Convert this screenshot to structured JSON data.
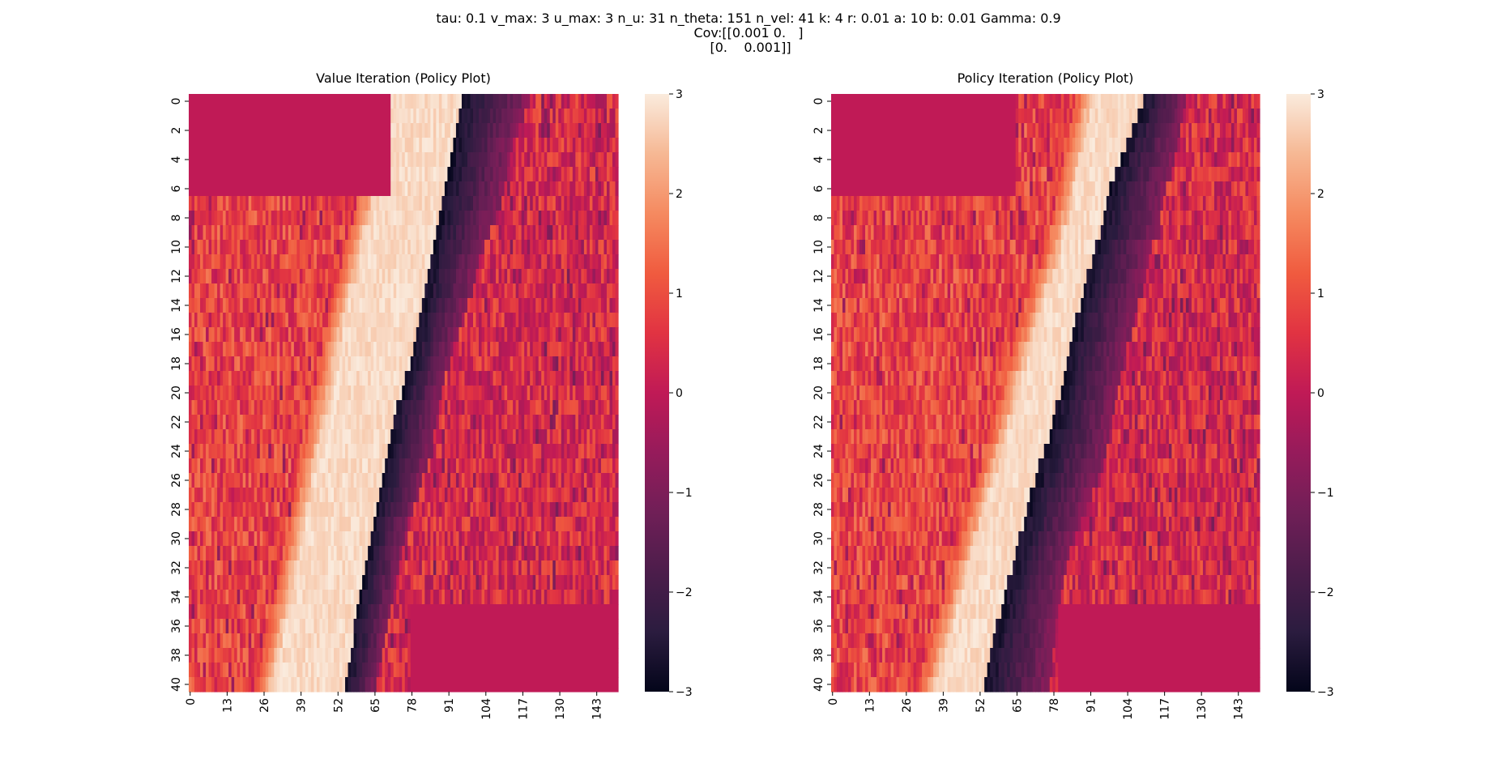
{
  "suptitle": {
    "line1": "tau: 0.1 v_max: 3 u_max: 3 n_u: 31 n_theta: 151 n_vel: 41 k: 4 r: 0.01 a: 10 b: 0.01 Gamma: 0.9",
    "line2": "Cov:[[0.001 0.   ]",
    "line3": " [0.    0.001]]"
  },
  "chart_data": [
    {
      "type": "heatmap",
      "title": "Value Iteration (Policy Plot)",
      "n_rows": 41,
      "n_cols": 151,
      "yticks": [
        "0",
        "2",
        "4",
        "6",
        "8",
        "10",
        "12",
        "14",
        "16",
        "18",
        "20",
        "22",
        "24",
        "26",
        "28",
        "30",
        "32",
        "34",
        "36",
        "38",
        "40"
      ],
      "xticks": [
        "0",
        "13",
        "26",
        "39",
        "52",
        "65",
        "78",
        "91",
        "104",
        "117",
        "130",
        "143"
      ],
      "colorbar": {
        "vmin": -3,
        "vmax": 3,
        "ticks": [
          "3",
          "2",
          "1",
          "0",
          "−1",
          "−2",
          "−3"
        ]
      },
      "bands": {
        "bright_start_col": [
          71,
          71,
          70,
          70,
          68,
          67,
          66,
          65,
          64,
          62,
          61,
          60,
          59,
          57,
          56,
          55,
          54,
          53,
          52,
          51,
          50,
          49,
          48,
          47,
          46,
          45,
          44,
          43,
          42,
          41,
          40,
          39,
          38,
          37,
          36,
          35,
          34,
          33,
          32,
          31,
          30
        ],
        "dark_start_col": [
          96,
          95,
          94,
          93,
          92,
          91,
          90,
          89,
          88,
          87,
          86,
          85,
          84,
          83,
          82,
          81,
          80,
          79,
          78,
          76,
          75,
          73,
          72,
          71,
          70,
          69,
          68,
          67,
          66,
          65,
          64,
          63,
          62,
          61,
          60,
          59,
          58,
          58,
          57,
          56,
          55
        ],
        "dark_end_col": [
          120,
          118,
          116,
          114,
          113,
          112,
          111,
          110,
          108,
          106,
          104,
          102,
          101,
          100,
          98,
          96,
          95,
          93,
          92,
          90,
          89,
          88,
          87,
          86,
          85,
          84,
          82,
          81,
          79,
          77,
          76,
          75,
          74,
          73,
          72,
          71,
          70,
          69,
          68,
          67,
          66
        ]
      },
      "saturated_regions": [
        {
          "rows": [
            0,
            6
          ],
          "cols": [
            0,
            70
          ],
          "value": 0
        },
        {
          "rows": [
            35,
            40
          ],
          "cols": [
            78,
            150
          ],
          "value": 0
        }
      ]
    },
    {
      "type": "heatmap",
      "title": "Policy Iteration (Policy Plot)",
      "n_rows": 41,
      "n_cols": 151,
      "yticks": [
        "0",
        "2",
        "4",
        "6",
        "8",
        "10",
        "12",
        "14",
        "16",
        "18",
        "20",
        "22",
        "24",
        "26",
        "28",
        "30",
        "32",
        "34",
        "36",
        "38",
        "40"
      ],
      "xticks": [
        "0",
        "13",
        "26",
        "39",
        "52",
        "65",
        "78",
        "91",
        "104",
        "117",
        "130",
        "143"
      ],
      "colorbar": {
        "vmin": -3,
        "vmax": 3,
        "ticks": [
          "3",
          "2",
          "1",
          "0",
          "−1",
          "−2",
          "−3"
        ]
      },
      "bands": {
        "bright_start_col": [
          92,
          91,
          90,
          89,
          88,
          87,
          86,
          85,
          84,
          82,
          81,
          80,
          78,
          76,
          75,
          73,
          72,
          70,
          69,
          67,
          66,
          65,
          63,
          62,
          60,
          59,
          57,
          56,
          54,
          53,
          51,
          50,
          48,
          47,
          46,
          44,
          43,
          41,
          40,
          39,
          37
        ],
        "dark_start_col": [
          110,
          108,
          106,
          104,
          102,
          100,
          98,
          97,
          96,
          95,
          93,
          92,
          90,
          89,
          88,
          86,
          85,
          84,
          83,
          82,
          81,
          79,
          78,
          77,
          75,
          73,
          72,
          70,
          69,
          68,
          66,
          65,
          64,
          62,
          61,
          60,
          58,
          57,
          56,
          55,
          54
        ],
        "dark_end_col": [
          125,
          124,
          123,
          122,
          121,
          120,
          118,
          117,
          116,
          115,
          113,
          112,
          111,
          110,
          108,
          107,
          106,
          104,
          103,
          102,
          101,
          100,
          99,
          98,
          97,
          96,
          94,
          92,
          90,
          88,
          86,
          84,
          83,
          82,
          81,
          80,
          79,
          79,
          78,
          78,
          77
        ]
      },
      "saturated_regions": [
        {
          "rows": [
            0,
            6
          ],
          "cols": [
            0,
            64
          ],
          "value": 0
        },
        {
          "rows": [
            35,
            40
          ],
          "cols": [
            80,
            150
          ],
          "value": 0
        }
      ]
    }
  ]
}
